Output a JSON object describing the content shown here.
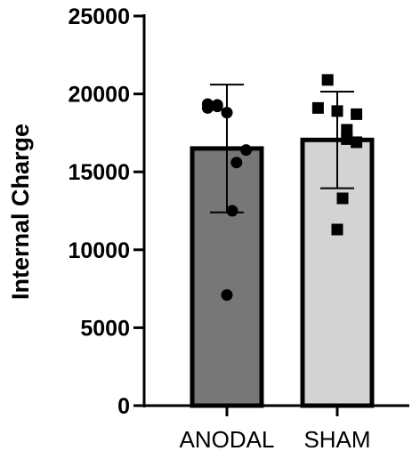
{
  "chart_data": {
    "type": "bar",
    "title": "",
    "xlabel": "",
    "ylabel": "Internal Charge",
    "ylim": [
      0,
      25000
    ],
    "yticks": [
      0,
      5000,
      10000,
      15000,
      20000,
      25000
    ],
    "grid": false,
    "categories": [
      "ANODAL",
      "SHAM"
    ],
    "values": [
      16500,
      17050
    ],
    "error": [
      4100,
      3100
    ],
    "bar_colors": [
      "#777777",
      "#d3d3d3"
    ],
    "edge_color": "#000000",
    "points": [
      {
        "category": "ANODAL",
        "marker": "circle",
        "values": [
          19200,
          19350,
          19300,
          19100,
          18800,
          16400,
          15600,
          12500,
          7100
        ]
      },
      {
        "category": "SHAM",
        "marker": "square",
        "values": [
          20900,
          19100,
          18700,
          18900,
          17700,
          17100,
          16900,
          13300,
          11300
        ]
      }
    ]
  }
}
